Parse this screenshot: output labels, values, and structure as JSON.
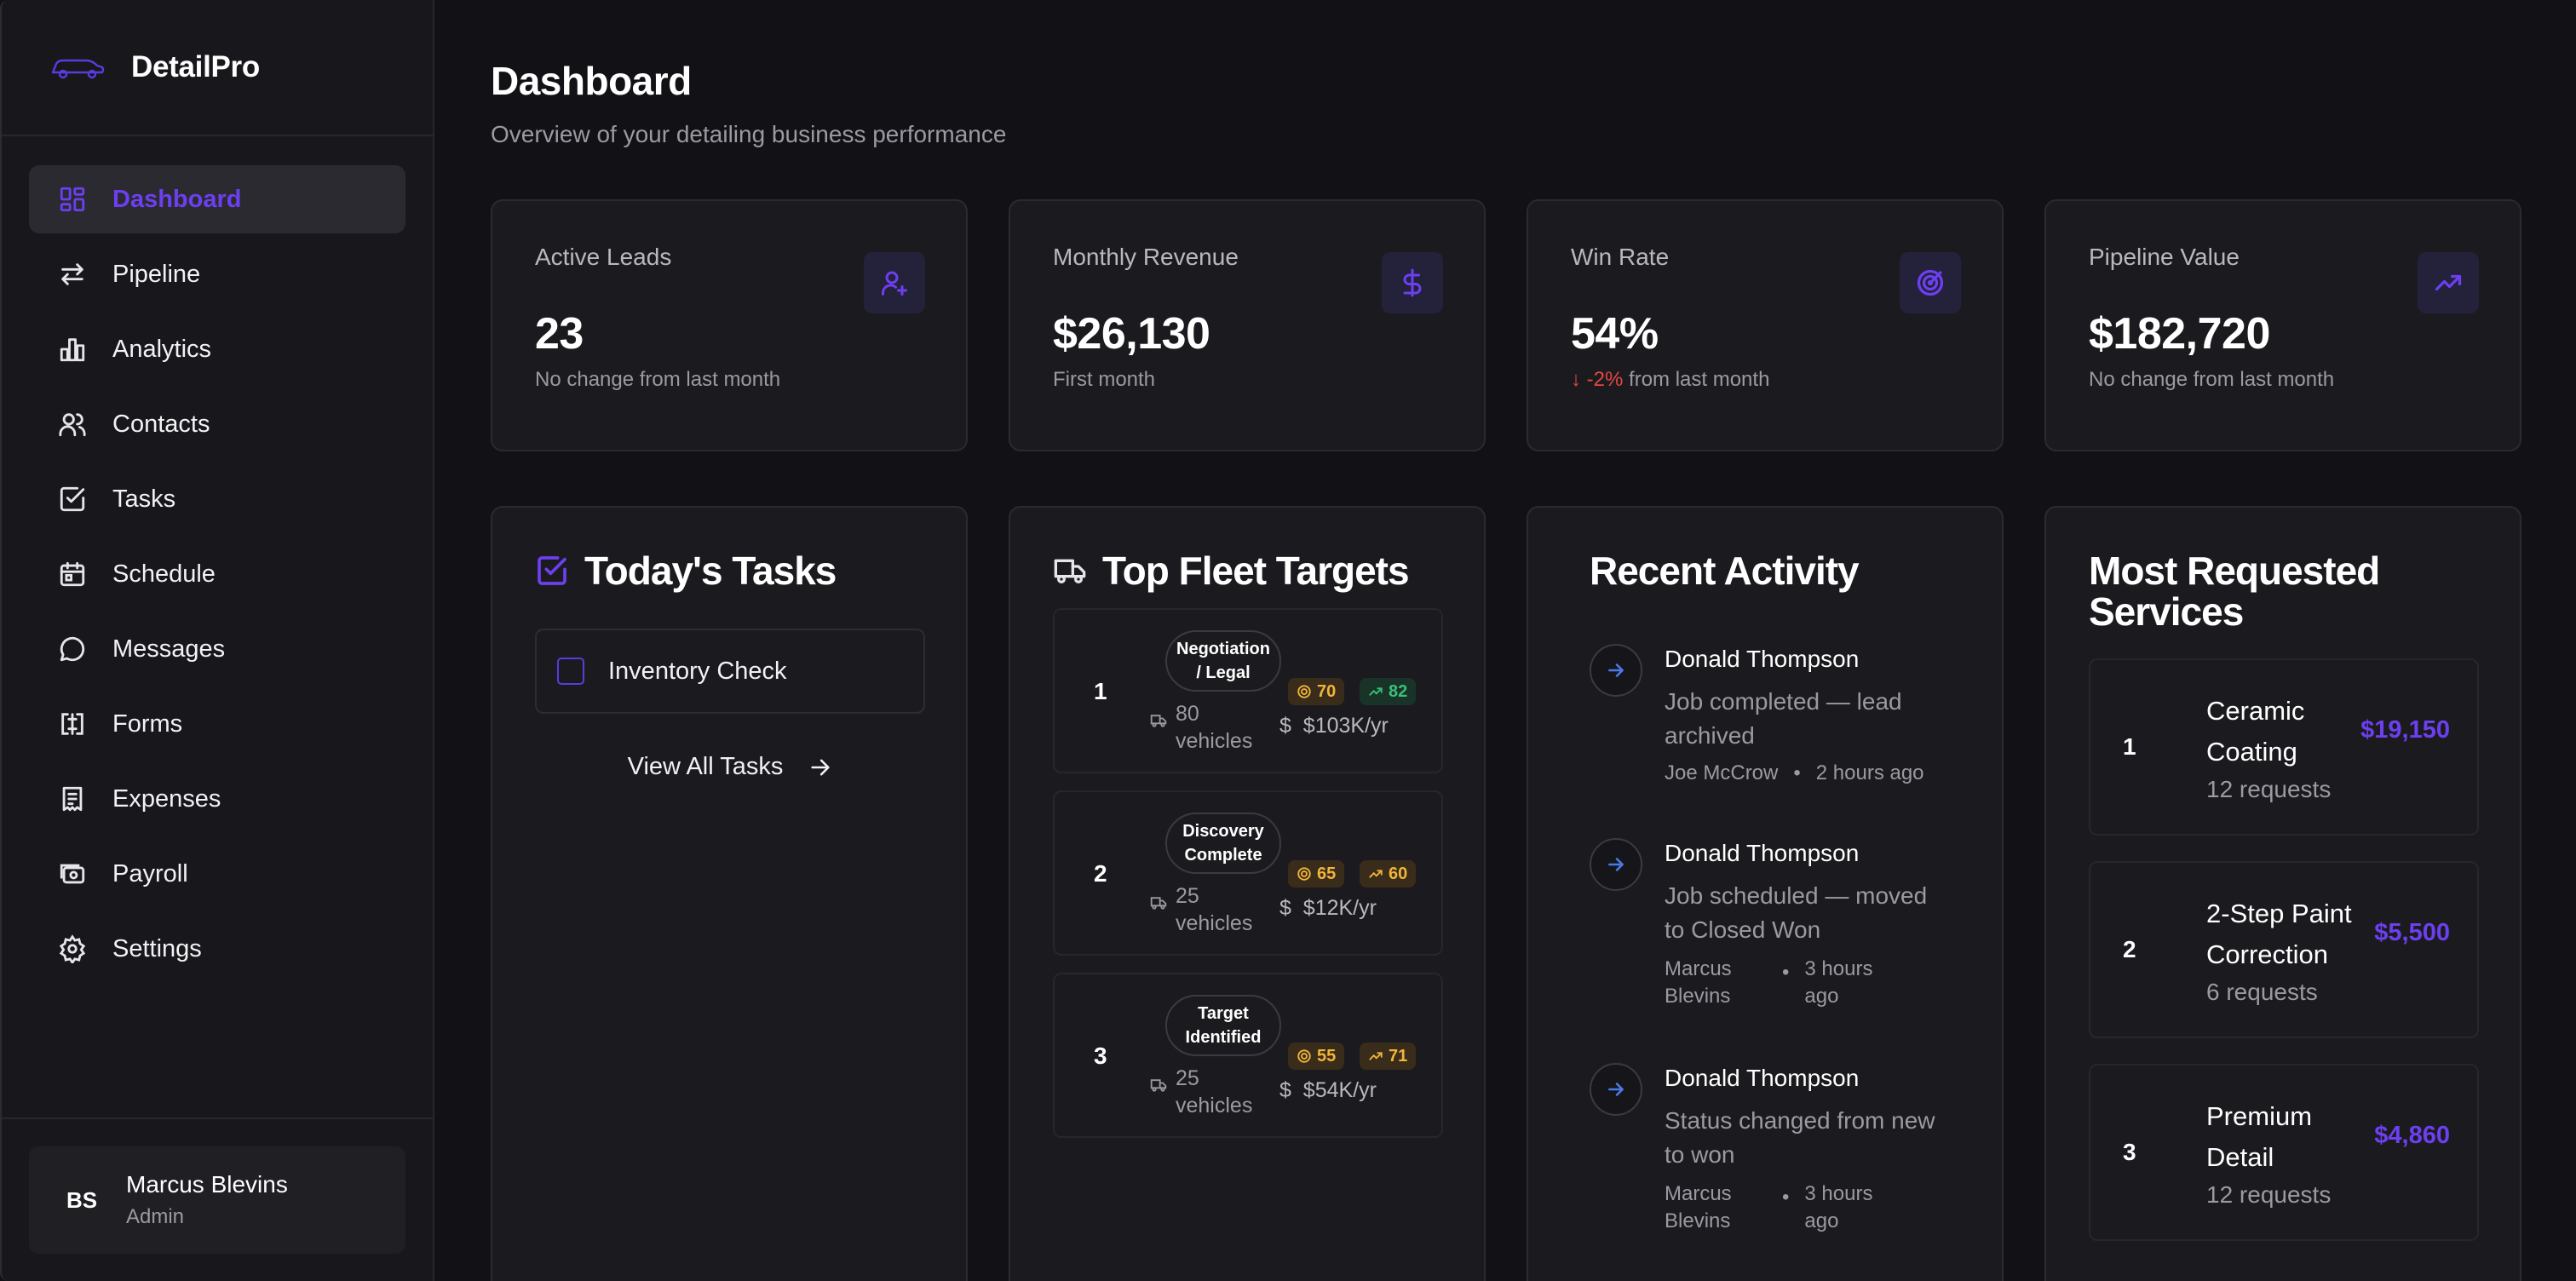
{
  "brand": {
    "name": "DetailPro"
  },
  "colors": {
    "accent": "#6c3ff0",
    "negative": "#e5483f",
    "warning": "#f0b53a",
    "positive": "#37c07a"
  },
  "sidebar": {
    "items": [
      {
        "label": "Dashboard",
        "icon": "dashboard-icon",
        "active": true
      },
      {
        "label": "Pipeline",
        "icon": "swap-arrows-icon"
      },
      {
        "label": "Analytics",
        "icon": "bar-chart-icon"
      },
      {
        "label": "Contacts",
        "icon": "users-icon"
      },
      {
        "label": "Tasks",
        "icon": "checkbox-icon"
      },
      {
        "label": "Schedule",
        "icon": "calendar-icon"
      },
      {
        "label": "Messages",
        "icon": "message-circle-icon"
      },
      {
        "label": "Forms",
        "icon": "form-icon"
      },
      {
        "label": "Expenses",
        "icon": "receipt-icon"
      },
      {
        "label": "Payroll",
        "icon": "wallet-icon"
      },
      {
        "label": "Settings",
        "icon": "gear-icon"
      }
    ],
    "user": {
      "initials": "BS",
      "name": "Marcus Blevins",
      "role": "Admin"
    }
  },
  "header": {
    "title": "Dashboard",
    "subtitle": "Overview of your detailing business performance"
  },
  "stats": [
    {
      "label": "Active Leads",
      "value": "23",
      "change": "",
      "foot": "No change from last month",
      "icon": "user-plus-icon"
    },
    {
      "label": "Monthly Revenue",
      "value": "$26,130",
      "change": "",
      "foot": "First month",
      "icon": "dollar-icon"
    },
    {
      "label": "Win Rate",
      "value": "54%",
      "change": "-2%",
      "foot": "from last month",
      "icon": "target-icon"
    },
    {
      "label": "Pipeline Value",
      "value": "$182,720",
      "change": "",
      "foot": "No change from last month",
      "icon": "trending-up-icon"
    }
  ],
  "tasks": {
    "title": "Today's Tasks",
    "items": [
      {
        "label": "Inventory Check"
      }
    ],
    "view_all": "View All Tasks"
  },
  "fleet": {
    "title": "Top Fleet Targets",
    "items": [
      {
        "rank": "1",
        "stage_line1": "Negotiation",
        "stage_line2": "/ Legal",
        "vehicles_count": "80",
        "vehicles_word": "vehicles",
        "score": "70",
        "trend": "82",
        "trend_color": "green",
        "revenue": "$103K/yr"
      },
      {
        "rank": "2",
        "stage_line1": "Discovery",
        "stage_line2": "Complete",
        "vehicles_count": "25",
        "vehicles_word": "vehicles",
        "score": "65",
        "trend": "60",
        "trend_color": "yellow",
        "revenue": "$12K/yr"
      },
      {
        "rank": "3",
        "stage_line1": "Target",
        "stage_line2": "Identified",
        "vehicles_count": "25",
        "vehicles_word": "vehicles",
        "score": "55",
        "trend": "71",
        "trend_color": "yellow",
        "revenue": "$54K/yr"
      }
    ]
  },
  "activity": {
    "title": "Recent Activity",
    "items": [
      {
        "name": "Donald Thompson",
        "desc": "Job completed — lead archived",
        "by": "Joe McCrow",
        "when": "2 hours ago"
      },
      {
        "name": "Donald Thompson",
        "desc": "Job scheduled — moved to Closed Won",
        "by": "Marcus Blevins",
        "when": "3 hours ago"
      },
      {
        "name": "Donald Thompson",
        "desc": "Status changed from new to won",
        "by": "Marcus Blevins",
        "when": "3 hours ago"
      }
    ]
  },
  "services": {
    "title": "Most Requested Services",
    "items": [
      {
        "rank": "1",
        "name": "Ceramic Coating",
        "requests": "12 requests",
        "price": "$19,150"
      },
      {
        "rank": "2",
        "name": "2-Step Paint Correction",
        "requests": "6 requests",
        "price": "$5,500"
      },
      {
        "rank": "3",
        "name": "Premium Detail",
        "requests": "12 requests",
        "price": "$4,860"
      }
    ]
  }
}
